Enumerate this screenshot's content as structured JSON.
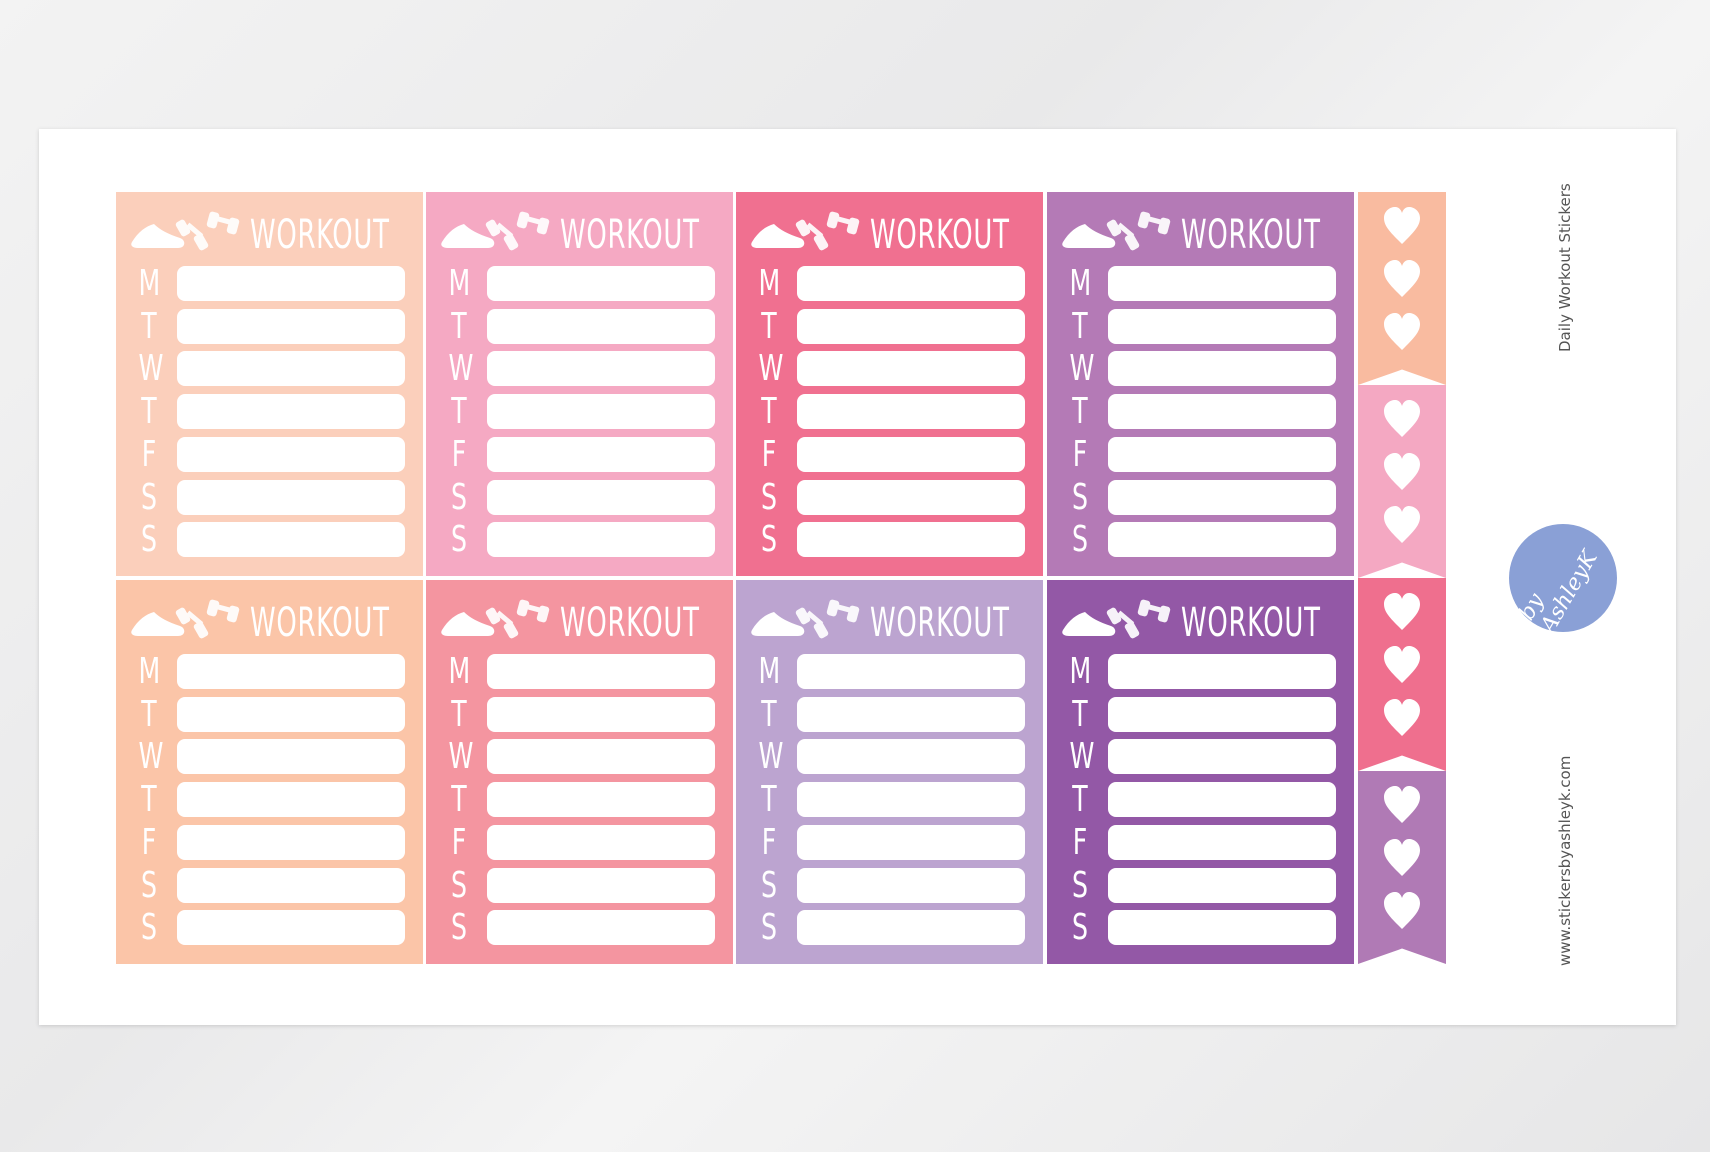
{
  "sheet": {
    "side_title": "Daily Workout Stickers",
    "website": "www.stickersbyashleyk.com",
    "logo_text": "by AshleyK"
  },
  "sticker": {
    "title": "WORKOUT",
    "days": [
      "M",
      "T",
      "W",
      "T",
      "F",
      "S",
      "S"
    ],
    "icons": [
      "sneaker-icon",
      "dumbbell-icon"
    ]
  },
  "sticker_colors": [
    "#fbcfbb",
    "#f5a9c3",
    "#f07090",
    "#b47ab6",
    "#fbc5a8",
    "#f495a0",
    "#bca4d0",
    "#9358a6"
  ],
  "flag_colors": [
    "#f9bba0",
    "#f4a8c2",
    "#ef6f8e",
    "#b07ab5"
  ],
  "hearts_per_flag": 3
}
